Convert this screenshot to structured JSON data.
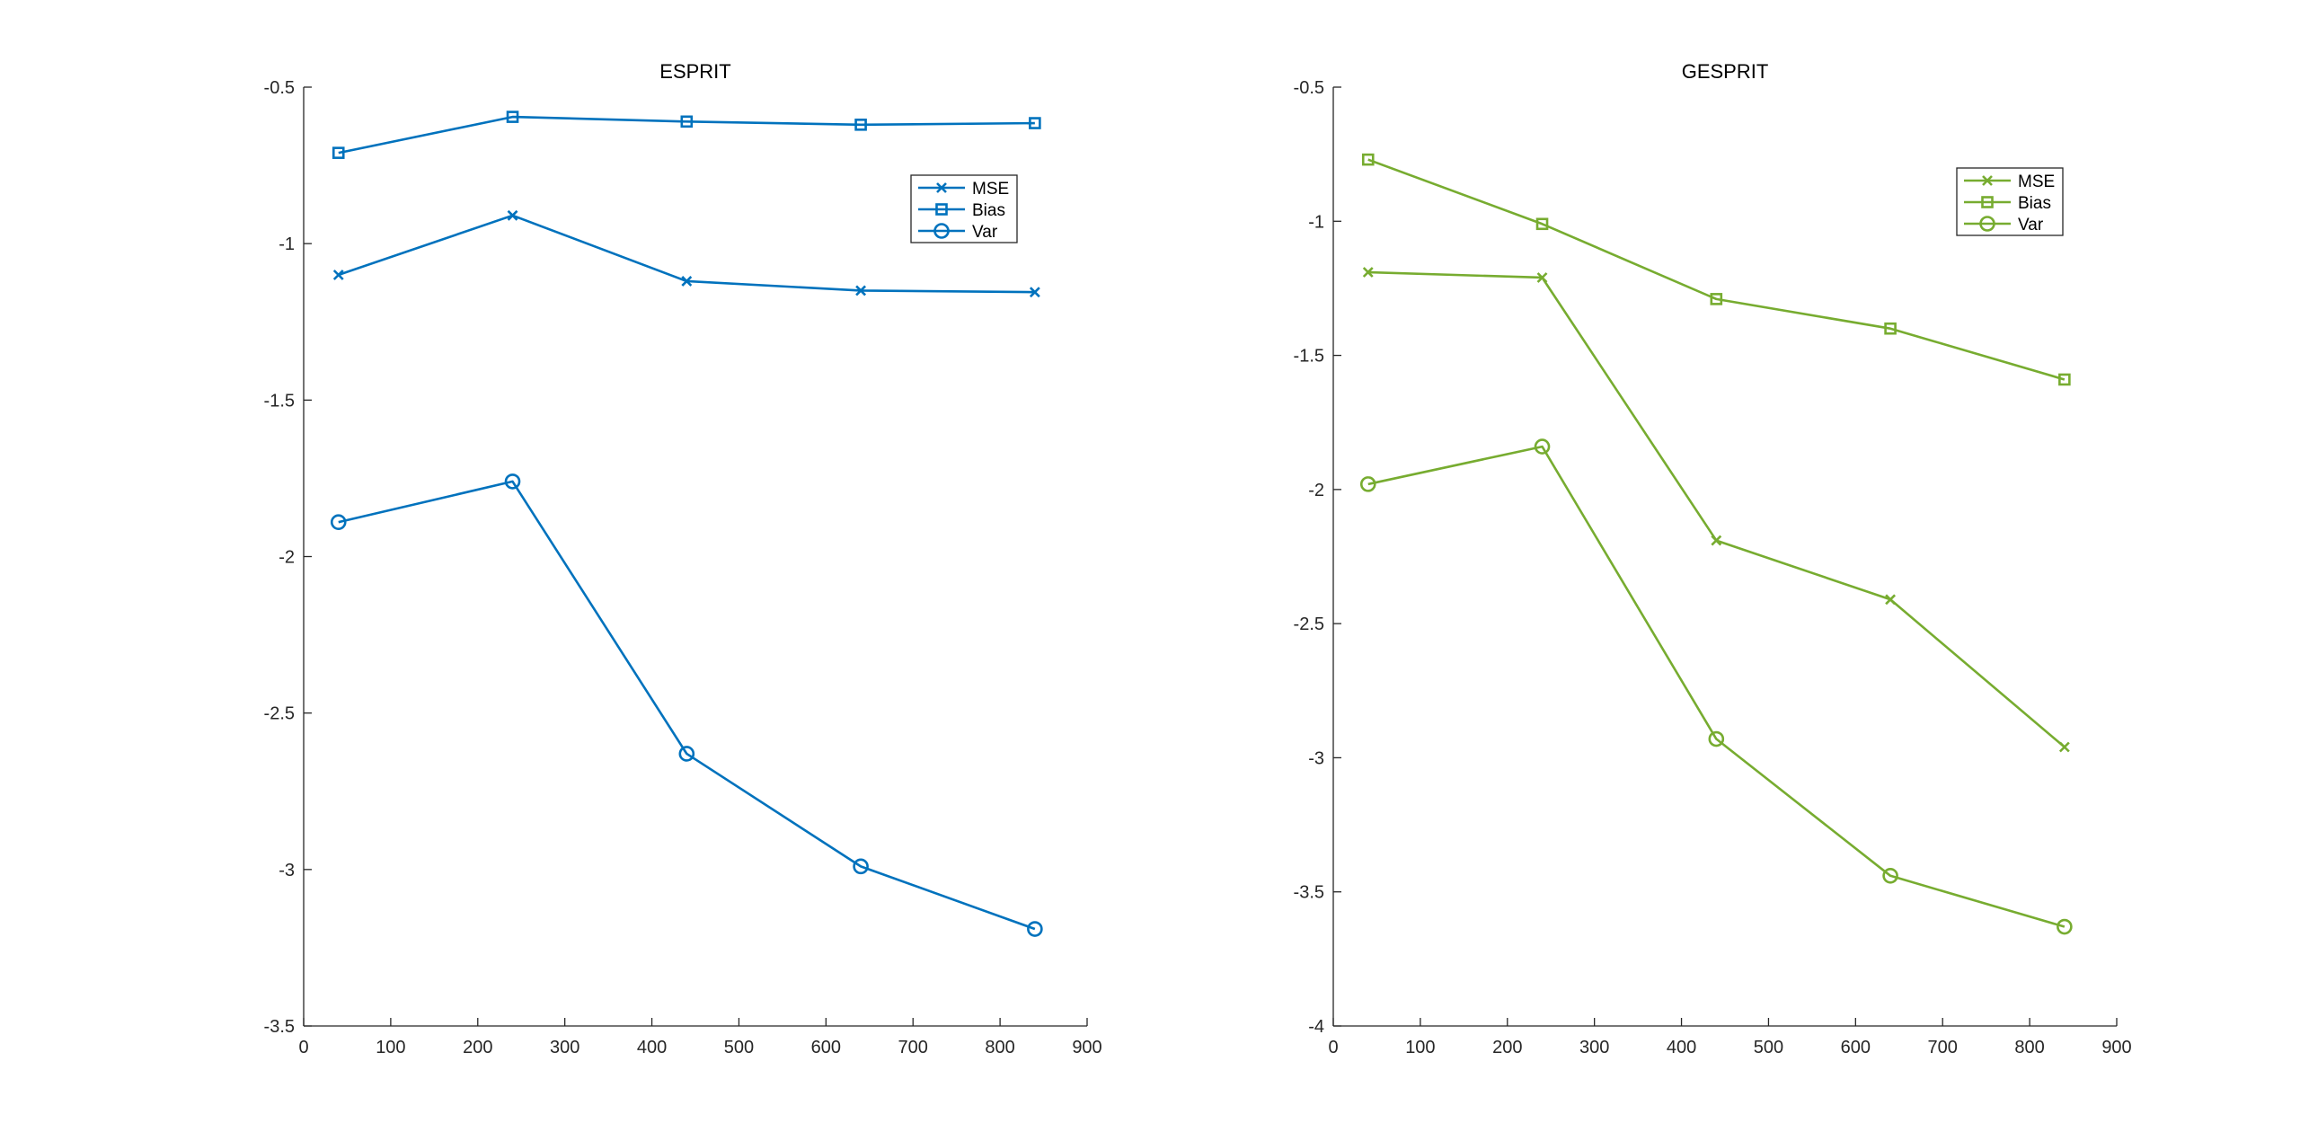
{
  "chart_data": [
    {
      "type": "line",
      "title": "ESPRIT",
      "xlabel": "",
      "ylabel": "",
      "xlim": [
        0,
        900
      ],
      "ylim": [
        -3.5,
        -0.5
      ],
      "xticks": [
        0,
        100,
        200,
        300,
        400,
        500,
        600,
        700,
        800,
        900
      ],
      "yticks": [
        -0.5,
        -1,
        -1.5,
        -2,
        -2.5,
        -3,
        -3.5
      ],
      "grid": false,
      "legend_position": "top-right",
      "color": "#0072BD",
      "x": [
        40,
        240,
        440,
        640,
        840
      ],
      "series": [
        {
          "name": "MSE",
          "marker": "x",
          "values": [
            -1.1,
            -0.91,
            -1.12,
            -1.15,
            -1.155
          ]
        },
        {
          "name": "Bias",
          "marker": "square",
          "values": [
            -0.71,
            -0.595,
            -0.61,
            -0.62,
            -0.615
          ]
        },
        {
          "name": "Var",
          "marker": "circle",
          "values": [
            -1.89,
            -1.76,
            -2.63,
            -2.99,
            -3.19
          ]
        }
      ]
    },
    {
      "type": "line",
      "title": "GESPRIT",
      "xlabel": "",
      "ylabel": "",
      "xlim": [
        0,
        900
      ],
      "ylim": [
        -4,
        -0.5
      ],
      "xticks": [
        0,
        100,
        200,
        300,
        400,
        500,
        600,
        700,
        800,
        900
      ],
      "yticks": [
        -0.5,
        -1,
        -1.5,
        -2,
        -2.5,
        -3,
        -3.5,
        -4
      ],
      "grid": false,
      "legend_position": "top-right",
      "color": "#77AC30",
      "x": [
        40,
        240,
        440,
        640,
        840
      ],
      "series": [
        {
          "name": "MSE",
          "marker": "x",
          "values": [
            -1.19,
            -1.21,
            -2.19,
            -2.41,
            -2.96
          ]
        },
        {
          "name": "Bias",
          "marker": "square",
          "values": [
            -0.77,
            -1.01,
            -1.29,
            -1.4,
            -1.59
          ]
        },
        {
          "name": "Var",
          "marker": "circle",
          "values": [
            -1.98,
            -1.84,
            -2.93,
            -3.44,
            -3.63
          ]
        }
      ]
    }
  ]
}
